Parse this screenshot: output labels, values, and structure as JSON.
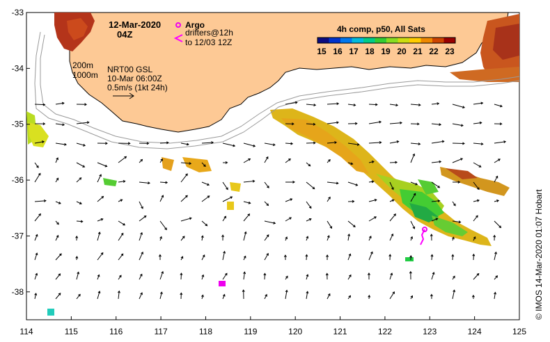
{
  "title": {
    "date": "12-Mar-2020",
    "time": "04Z"
  },
  "legend": {
    "argo_label": "Argo",
    "drifters_line1": "drifters@12h",
    "drifters_line2": "to 12/03 12Z",
    "composite_label": "4h comp, p50, All Sats",
    "colorbar_ticks": [
      "15",
      "16",
      "17",
      "18",
      "19",
      "20",
      "21",
      "22",
      "23"
    ],
    "colorbar_colors": [
      "#0b0b80",
      "#0033cc",
      "#0077ee",
      "#00bbdd",
      "#00cc88",
      "#33cc33",
      "#88dd22",
      "#ccdd11",
      "#ffcc00",
      "#ee8800",
      "#cc4400",
      "#990000"
    ]
  },
  "info": {
    "contour_200": "200m",
    "contour_1000": "1000m",
    "product": "NRT00 GSL",
    "product_time": "10-Mar 06:00Z",
    "scale": "0.5m/s (1kt 24h)"
  },
  "axes": {
    "lon_ticks": [
      "114",
      "115",
      "116",
      "117",
      "118",
      "119",
      "120",
      "121",
      "122",
      "123",
      "124",
      "125"
    ],
    "lat_ticks": [
      "-33",
      "-34",
      "-35",
      "-36",
      "-37",
      "-38"
    ],
    "lon_min": 114,
    "lon_max": 125,
    "lat_max": -33,
    "lat_min": -38.5
  },
  "credit": "© IMOS 14-Mar-2020 01:07 Hobart",
  "colors": {
    "land": "#fdc995",
    "argo": "#ee00ee",
    "drifter": "#ff00ff"
  }
}
